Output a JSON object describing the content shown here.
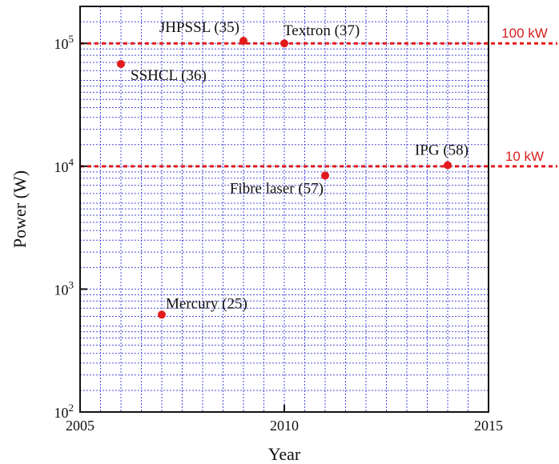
{
  "chart_data": {
    "type": "scatter",
    "title": "",
    "xlabel": "Year",
    "ylabel": "Power (W)",
    "xlim": [
      2005,
      2015
    ],
    "ylim": [
      100,
      200000
    ],
    "y_scale": "log",
    "grid": true,
    "x_ticks": [
      {
        "value": 2005,
        "label": "2005"
      },
      {
        "value": 2010,
        "label": "2010"
      },
      {
        "value": 2015,
        "label": "2015"
      }
    ],
    "y_ticks": [
      {
        "value": 100,
        "base": "10",
        "exp": "2"
      },
      {
        "value": 1000,
        "base": "10",
        "exp": "3"
      },
      {
        "value": 10000,
        "base": "10",
        "exp": "4"
      },
      {
        "value": 100000,
        "base": "10",
        "exp": "5"
      }
    ],
    "points": [
      {
        "label": "SSHCL (36)",
        "x": 2006,
        "y": 68000
      },
      {
        "label": "JHPSSL (35)",
        "x": 2009,
        "y": 105000
      },
      {
        "label": "Textron (37)",
        "x": 2010,
        "y": 100000
      },
      {
        "label": "Fibre laser (57)",
        "x": 2011,
        "y": 8400
      },
      {
        "label": "IPG (58)",
        "x": 2014,
        "y": 10200
      },
      {
        "label": "Mercury (25)",
        "x": 2007,
        "y": 620
      }
    ],
    "reference_lines": [
      {
        "label": "100 kW",
        "y": 100000
      },
      {
        "label": "10 kW",
        "y": 10000
      }
    ],
    "colors": {
      "points": "#e31a1c",
      "reference_lines": "#e31a1c",
      "grid": "#4d4ddb",
      "axes": "#111111"
    }
  }
}
